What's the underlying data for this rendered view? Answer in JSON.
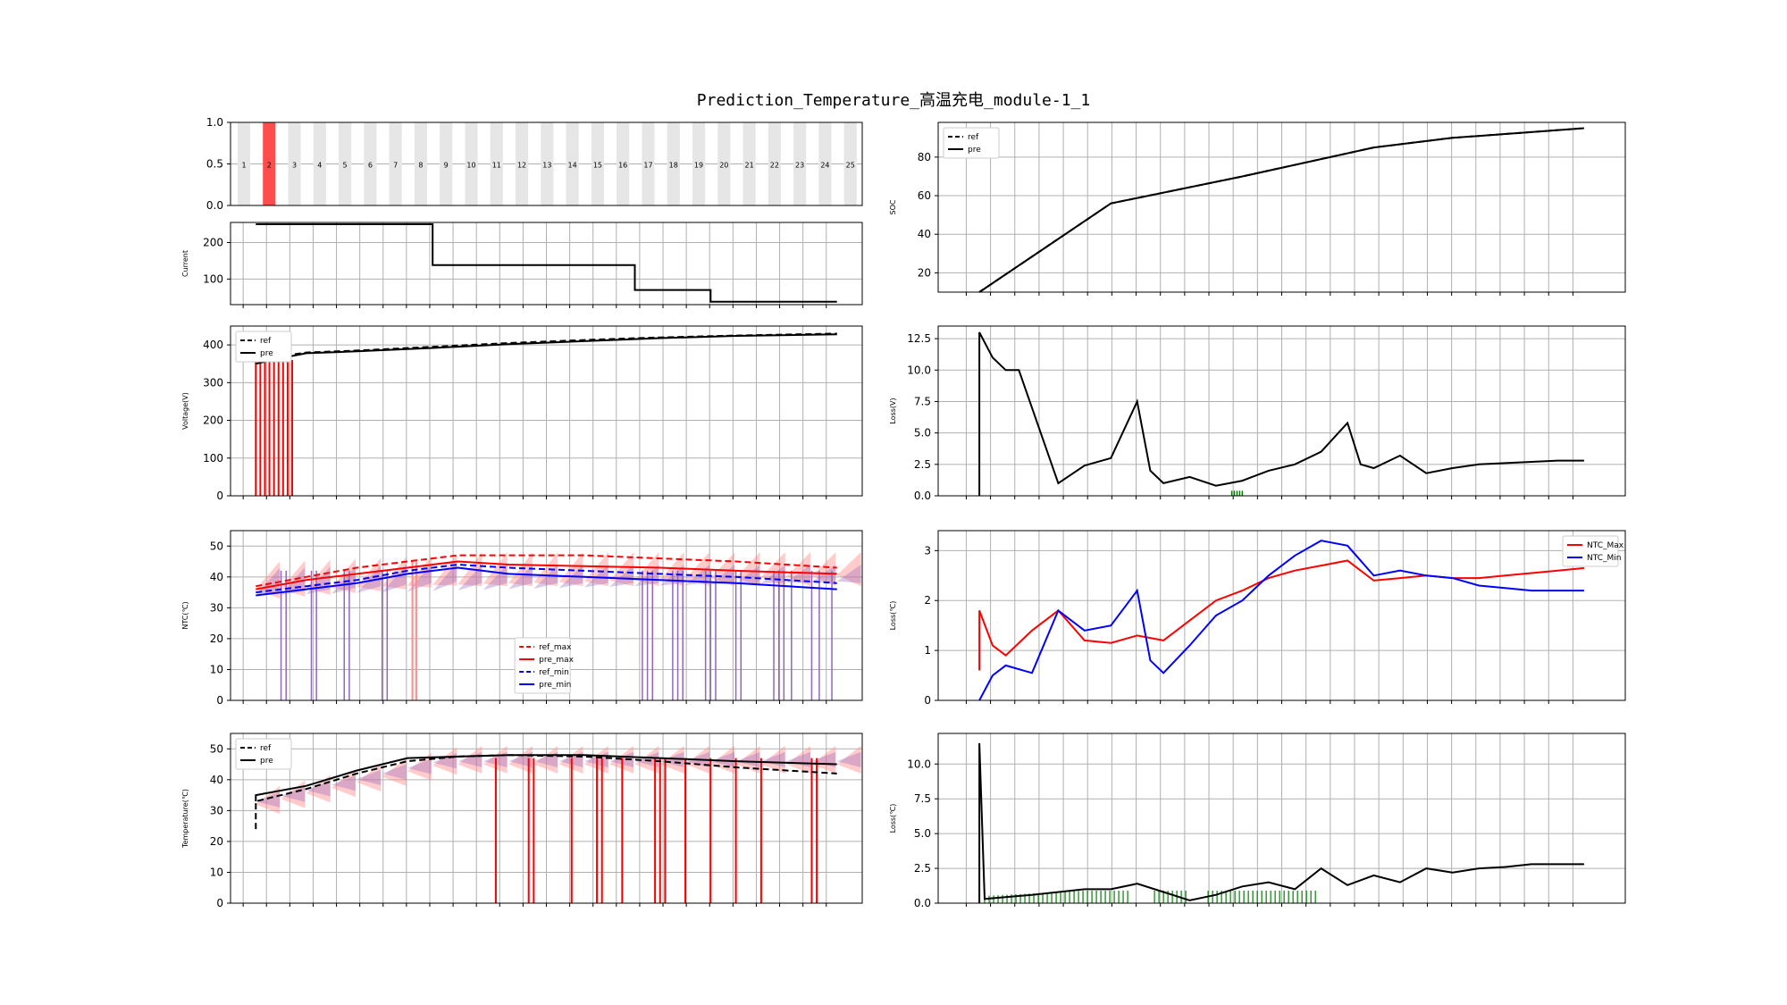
{
  "title": "Prediction_Temperature_高温充电_module-1_1",
  "colors": {
    "red": "#ff0000",
    "blue": "#0000ff",
    "black": "#000000",
    "green": "#008000",
    "purple": "#9467bd",
    "pink": "#ff8c8c",
    "grid": "#b0b0b0",
    "step_bg": "#e6e6e6",
    "step_hi": "#ff4d4d"
  },
  "chart_data": [
    {
      "id": "steps",
      "type": "bar",
      "categories": [
        "1",
        "2",
        "3",
        "4",
        "5",
        "6",
        "7",
        "8",
        "9",
        "10",
        "11",
        "12",
        "13",
        "14",
        "15",
        "16",
        "17",
        "18",
        "19",
        "20",
        "21",
        "22",
        "23",
        "24",
        "25"
      ],
      "values": [
        1,
        1,
        1,
        1,
        1,
        1,
        1,
        1,
        1,
        1,
        1,
        1,
        1,
        1,
        1,
        1,
        1,
        1,
        1,
        1,
        1,
        1,
        1,
        1,
        1
      ],
      "highlight_index": 1,
      "yticks": [
        "0.0",
        "0.5",
        "1.0"
      ],
      "ylim": [
        0,
        1
      ]
    },
    {
      "id": "current",
      "type": "line",
      "ylabel": "Current",
      "ylim": [
        30,
        255
      ],
      "yticks": [
        100,
        200
      ],
      "series": [
        {
          "points": [
            [
              0,
              250
            ],
            [
              7,
              250
            ],
            [
              7,
              138
            ],
            [
              15,
              138
            ],
            [
              15,
              70
            ],
            [
              18,
              70
            ],
            [
              18,
              38
            ],
            [
              23,
              38
            ]
          ]
        }
      ]
    },
    {
      "id": "voltage",
      "type": "line",
      "ylabel": "Voltage(V)",
      "ylim": [
        0,
        450
      ],
      "yticks": [
        0,
        100,
        200,
        300,
        400
      ],
      "legend": [
        "ref",
        "pre"
      ],
      "series": [
        {
          "name": "ref",
          "style": "dashed",
          "points": [
            [
              0,
              360
            ],
            [
              1,
              370
            ],
            [
              2,
              380
            ],
            [
              4,
              385
            ],
            [
              7,
              395
            ],
            [
              10,
              405
            ],
            [
              13,
              413
            ],
            [
              16,
              420
            ],
            [
              19,
              425
            ],
            [
              23,
              430
            ]
          ]
        },
        {
          "name": "pre",
          "style": "solid",
          "points": [
            [
              0,
              350
            ],
            [
              1,
              365
            ],
            [
              2,
              378
            ],
            [
              4,
              383
            ],
            [
              7,
              392
            ],
            [
              10,
              402
            ],
            [
              13,
              410
            ],
            [
              16,
              418
            ],
            [
              19,
              424
            ],
            [
              23,
              428
            ]
          ]
        }
      ]
    },
    {
      "id": "ntc",
      "type": "line",
      "ylabel": "NTC(℃)",
      "ylim": [
        0,
        55
      ],
      "yticks": [
        0,
        10,
        20,
        30,
        40,
        50
      ],
      "legend": [
        "ref_max",
        "pre_max",
        "ref_min",
        "pre_min"
      ],
      "series": [
        {
          "name": "ref_max",
          "style": "dashed",
          "color": "red",
          "points": [
            [
              0,
              37
            ],
            [
              2,
              40
            ],
            [
              4,
              43
            ],
            [
              6,
              45
            ],
            [
              8,
              47
            ],
            [
              10,
              47
            ],
            [
              13,
              47
            ],
            [
              16,
              46
            ],
            [
              19,
              45
            ],
            [
              23,
              43
            ]
          ]
        },
        {
          "name": "pre_max",
          "style": "solid",
          "color": "red",
          "points": [
            [
              0,
              36
            ],
            [
              2,
              39
            ],
            [
              4,
              41
            ],
            [
              6,
              43
            ],
            [
              8,
              45
            ],
            [
              10,
              44
            ],
            [
              13,
              43.5
            ],
            [
              16,
              43
            ],
            [
              19,
              42
            ],
            [
              23,
              41
            ]
          ]
        },
        {
          "name": "ref_min",
          "style": "dashed",
          "color": "blue",
          "points": [
            [
              0,
              35
            ],
            [
              2,
              37
            ],
            [
              4,
              39
            ],
            [
              6,
              42
            ],
            [
              8,
              44
            ],
            [
              10,
              43
            ],
            [
              13,
              42
            ],
            [
              16,
              41
            ],
            [
              19,
              40
            ],
            [
              23,
              38
            ]
          ]
        },
        {
          "name": "pre_min",
          "style": "solid",
          "color": "blue",
          "points": [
            [
              0,
              34
            ],
            [
              2,
              36
            ],
            [
              4,
              38
            ],
            [
              6,
              41
            ],
            [
              8,
              43
            ],
            [
              10,
              41
            ],
            [
              13,
              40
            ],
            [
              16,
              39
            ],
            [
              19,
              38
            ],
            [
              23,
              36
            ]
          ]
        }
      ]
    },
    {
      "id": "temperature",
      "type": "line",
      "ylabel": "Temperature(℃)",
      "ylim": [
        0,
        55
      ],
      "yticks": [
        0,
        10,
        20,
        30,
        40,
        50
      ],
      "legend": [
        "ref",
        "pre"
      ],
      "series": [
        {
          "name": "ref",
          "style": "dashed",
          "points": [
            [
              0,
              24
            ],
            [
              0,
              33
            ],
            [
              2,
              37
            ],
            [
              4,
              42
            ],
            [
              6,
              46
            ],
            [
              8,
              47.5
            ],
            [
              10,
              48
            ],
            [
              13,
              47.5
            ],
            [
              16,
              46
            ],
            [
              19,
              44
            ],
            [
              23,
              42
            ]
          ]
        },
        {
          "name": "pre",
          "style": "solid",
          "points": [
            [
              0,
              33
            ],
            [
              0,
              35
            ],
            [
              2,
              38
            ],
            [
              4,
              43
            ],
            [
              6,
              47
            ],
            [
              8,
              47.5
            ],
            [
              10,
              48
            ],
            [
              13,
              48
            ],
            [
              16,
              47
            ],
            [
              19,
              46
            ],
            [
              23,
              45
            ]
          ]
        }
      ]
    },
    {
      "id": "soc",
      "type": "line",
      "ylabel": "SOC",
      "ylim": [
        10,
        98
      ],
      "yticks": [
        20,
        40,
        60,
        80
      ],
      "legend": [
        "ref",
        "pre"
      ],
      "series": [
        {
          "name": "ref",
          "style": "dashed",
          "points": [
            [
              0,
              10
            ],
            [
              5,
              56
            ],
            [
              10,
              70
            ],
            [
              15,
              85
            ],
            [
              18,
              90
            ],
            [
              23,
              95
            ]
          ]
        },
        {
          "name": "pre",
          "style": "solid",
          "points": [
            [
              0,
              10
            ],
            [
              5,
              56
            ],
            [
              10,
              70
            ],
            [
              15,
              85
            ],
            [
              18,
              90
            ],
            [
              23,
              95
            ]
          ]
        }
      ]
    },
    {
      "id": "loss_v",
      "type": "line",
      "ylabel": "Loss(V)",
      "ylim": [
        0,
        13.5
      ],
      "yticks": [
        "0.0",
        "2.5",
        "5.0",
        "7.5",
        "10.0",
        "12.5"
      ],
      "series": [
        {
          "points": [
            [
              0,
              0
            ],
            [
              0,
              13
            ],
            [
              0.5,
              11
            ],
            [
              1,
              10
            ],
            [
              1.5,
              10
            ],
            [
              3,
              1
            ],
            [
              4,
              2.4
            ],
            [
              5,
              3
            ],
            [
              6,
              7.5
            ],
            [
              6.5,
              2
            ],
            [
              7,
              1
            ],
            [
              8,
              1.5
            ],
            [
              9,
              0.8
            ],
            [
              10,
              1.2
            ],
            [
              11,
              2
            ],
            [
              12,
              2.5
            ],
            [
              13,
              3.5
            ],
            [
              14,
              5.8
            ],
            [
              14.5,
              2.5
            ],
            [
              15,
              2.2
            ],
            [
              16,
              3.2
            ],
            [
              17,
              1.8
            ],
            [
              18,
              2.2
            ],
            [
              19,
              2.5
            ],
            [
              20,
              2.6
            ],
            [
              21,
              2.7
            ],
            [
              22,
              2.8
            ],
            [
              23,
              2.8
            ]
          ]
        }
      ]
    },
    {
      "id": "loss_ntc",
      "type": "line",
      "ylabel": "Loss(℃)",
      "ylim": [
        0,
        3.4
      ],
      "yticks": [
        0,
        1,
        2,
        3
      ],
      "legend": [
        "NTC_Max",
        "NTC_Min"
      ],
      "series": [
        {
          "name": "NTC_Max",
          "color": "red",
          "points": [
            [
              0,
              0.6
            ],
            [
              0,
              1.8
            ],
            [
              0.5,
              1.1
            ],
            [
              1,
              0.9
            ],
            [
              2,
              1.4
            ],
            [
              3,
              1.8
            ],
            [
              4,
              1.2
            ],
            [
              5,
              1.15
            ],
            [
              6,
              1.3
            ],
            [
              7,
              1.2
            ],
            [
              8,
              1.6
            ],
            [
              9,
              2.0
            ],
            [
              10,
              2.2
            ],
            [
              11,
              2.45
            ],
            [
              12,
              2.6
            ],
            [
              13,
              2.7
            ],
            [
              14,
              2.8
            ],
            [
              15,
              2.4
            ],
            [
              16,
              2.45
            ],
            [
              17,
              2.5
            ],
            [
              18,
              2.45
            ],
            [
              19,
              2.45
            ],
            [
              20,
              2.5
            ],
            [
              21,
              2.55
            ],
            [
              22,
              2.6
            ],
            [
              23,
              2.65
            ]
          ]
        },
        {
          "name": "NTC_Min",
          "color": "blue",
          "points": [
            [
              0,
              0
            ],
            [
              0.5,
              0.5
            ],
            [
              1,
              0.7
            ],
            [
              2,
              0.55
            ],
            [
              3,
              1.8
            ],
            [
              4,
              1.4
            ],
            [
              5,
              1.5
            ],
            [
              6,
              2.2
            ],
            [
              6.5,
              0.8
            ],
            [
              7,
              0.55
            ],
            [
              8,
              1.1
            ],
            [
              9,
              1.7
            ],
            [
              10,
              2.0
            ],
            [
              11,
              2.5
            ],
            [
              12,
              2.9
            ],
            [
              13,
              3.2
            ],
            [
              14,
              3.1
            ],
            [
              15,
              2.5
            ],
            [
              16,
              2.6
            ],
            [
              17,
              2.5
            ],
            [
              18,
              2.45
            ],
            [
              19,
              2.3
            ],
            [
              20,
              2.25
            ],
            [
              21,
              2.2
            ],
            [
              22,
              2.2
            ],
            [
              23,
              2.2
            ]
          ]
        }
      ]
    },
    {
      "id": "loss_temp",
      "type": "line",
      "ylabel": "Loss(℃)",
      "ylim": [
        0,
        12.2
      ],
      "yticks": [
        "0.0",
        "2.5",
        "5.0",
        "7.5",
        "10.0"
      ],
      "series": [
        {
          "points": [
            [
              0,
              0
            ],
            [
              0,
              11.5
            ],
            [
              0.2,
              0.3
            ],
            [
              2,
              0.6
            ],
            [
              4,
              1
            ],
            [
              5,
              1
            ],
            [
              6,
              1.4
            ],
            [
              7,
              0.8
            ],
            [
              8,
              0.2
            ],
            [
              9,
              0.6
            ],
            [
              10,
              1.2
            ],
            [
              11,
              1.5
            ],
            [
              12,
              1.0
            ],
            [
              13,
              2.5
            ],
            [
              14,
              1.3
            ],
            [
              15,
              2
            ],
            [
              16,
              1.5
            ],
            [
              17,
              2.5
            ],
            [
              18,
              2.2
            ],
            [
              19,
              2.5
            ],
            [
              20,
              2.6
            ],
            [
              21,
              2.8
            ],
            [
              22,
              2.8
            ],
            [
              23,
              2.8
            ]
          ]
        }
      ]
    }
  ]
}
